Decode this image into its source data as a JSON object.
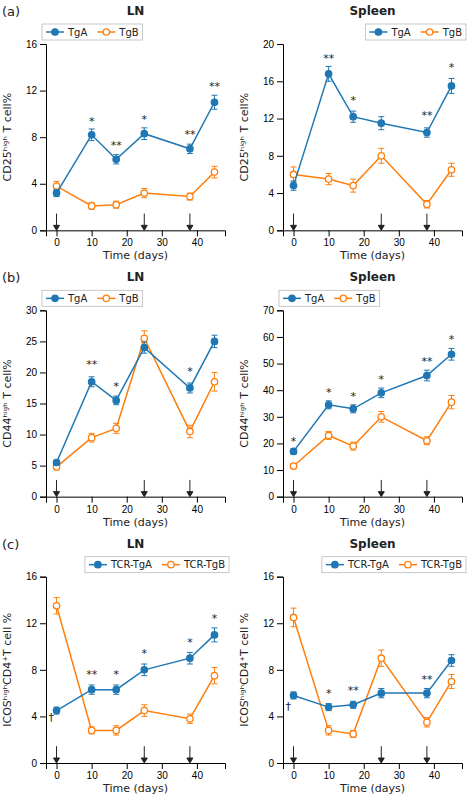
{
  "chart_data": [
    {
      "type": "line",
      "title": "LN",
      "x_label": "Time (days)",
      "y_label": "CD25ʰⁱᵍʰ T cell%",
      "x": [
        0,
        10,
        17,
        25,
        38,
        45
      ],
      "xlim": [
        -3,
        48
      ],
      "xticks": [
        0,
        10,
        20,
        30,
        40
      ],
      "ylim": [
        0,
        16
      ],
      "yticks": [
        0,
        4,
        8,
        12,
        16
      ],
      "series": [
        {
          "name": "TgA",
          "marker": "circle",
          "values": [
            3.2,
            8.2,
            6.1,
            8.3,
            7.0,
            11.0
          ],
          "errors": [
            0.3,
            0.5,
            0.4,
            0.5,
            0.4,
            0.6
          ]
        },
        {
          "name": "TgB",
          "marker": "circle-open",
          "values": [
            3.8,
            2.1,
            2.2,
            3.2,
            2.9,
            5.0
          ],
          "errors": [
            0.4,
            0.3,
            0.3,
            0.4,
            0.3,
            0.5
          ]
        }
      ],
      "arrows_x": [
        0,
        25,
        38
      ],
      "annotations": [
        {
          "text": "(a)"
        },
        {
          "text": "*",
          "x": 10,
          "y": 9.0
        },
        {
          "text": "**",
          "x": 17,
          "y": 6.9
        },
        {
          "text": "*",
          "x": 25,
          "y": 9.1
        },
        {
          "text": "**",
          "x": 38,
          "y": 7.8
        },
        {
          "text": "**",
          "x": 45,
          "y": 12.0
        }
      ],
      "legend": "upper left",
      "grid": false
    },
    {
      "type": "line",
      "title": "Spleen",
      "x_label": "Time (days)",
      "y_label": "CD25ʰⁱᵍʰ T cell%",
      "x": [
        0,
        10,
        17,
        25,
        38,
        45
      ],
      "xlim": [
        -3,
        48
      ],
      "xticks": [
        0,
        10,
        20,
        30,
        40
      ],
      "ylim": [
        0,
        20
      ],
      "yticks": [
        0,
        4,
        8,
        12,
        16,
        20
      ],
      "series": [
        {
          "name": "TgA",
          "marker": "circle",
          "values": [
            4.8,
            16.8,
            12.2,
            11.5,
            10.5,
            15.5
          ],
          "errors": [
            0.5,
            0.8,
            0.6,
            0.7,
            0.5,
            0.8
          ]
        },
        {
          "name": "TgB",
          "marker": "circle-open",
          "values": [
            6.0,
            5.5,
            4.8,
            8.0,
            2.8,
            6.5
          ],
          "errors": [
            0.8,
            0.6,
            0.7,
            0.8,
            0.4,
            0.7
          ]
        }
      ],
      "arrows_x": [
        0,
        25,
        38
      ],
      "annotations": [
        {
          "text": "**",
          "x": 10,
          "y": 18.0
        },
        {
          "text": "*",
          "x": 17,
          "y": 13.5
        },
        {
          "text": "**",
          "x": 38,
          "y": 11.8
        },
        {
          "text": "*",
          "x": 45,
          "y": 17.0
        }
      ],
      "legend": "upper right",
      "grid": false
    },
    {
      "type": "line",
      "title": "LN",
      "x_label": "Time (days)",
      "y_label": "CD44ʰⁱᵍʰ T cell%",
      "x": [
        0,
        10,
        17,
        25,
        38,
        45
      ],
      "xlim": [
        -3,
        48
      ],
      "xticks": [
        0,
        10,
        20,
        30,
        40
      ],
      "ylim": [
        0,
        30
      ],
      "yticks": [
        0,
        5,
        10,
        15,
        20,
        25,
        30
      ],
      "series": [
        {
          "name": "TgA",
          "marker": "circle",
          "values": [
            5.5,
            18.5,
            15.5,
            24.0,
            17.5,
            25.0
          ],
          "errors": [
            0.4,
            0.8,
            0.7,
            0.9,
            0.8,
            1.0
          ]
        },
        {
          "name": "TgB",
          "marker": "circle-open",
          "values": [
            4.8,
            9.5,
            11.0,
            25.5,
            10.5,
            18.5
          ],
          "errors": [
            0.5,
            0.7,
            0.8,
            1.2,
            1.0,
            1.5
          ]
        }
      ],
      "arrows_x": [
        0,
        25,
        38
      ],
      "annotations": [
        {
          "text": "(b)"
        },
        {
          "text": "**",
          "x": 10,
          "y": 20.5
        },
        {
          "text": "*",
          "x": 17,
          "y": 17.0
        },
        {
          "text": "*",
          "x": 38,
          "y": 19.5
        }
      ],
      "legend": "upper left",
      "grid": false
    },
    {
      "type": "line",
      "title": "Spleen",
      "x_label": "Time (days)",
      "y_label": "CD44ʰⁱᵍʰ T cell%",
      "x": [
        0,
        10,
        17,
        25,
        38,
        45
      ],
      "xlim": [
        -3,
        48
      ],
      "xticks": [
        0,
        10,
        20,
        30,
        40
      ],
      "ylim": [
        0,
        70
      ],
      "yticks": [
        0,
        10,
        20,
        30,
        40,
        50,
        60,
        70
      ],
      "series": [
        {
          "name": "TgA",
          "marker": "circle",
          "values": [
            17.0,
            34.5,
            33.0,
            39.0,
            45.5,
            53.5
          ],
          "errors": [
            1.0,
            1.5,
            1.5,
            1.8,
            2.0,
            2.2
          ]
        },
        {
          "name": "TgB",
          "marker": "circle-open",
          "values": [
            11.5,
            23.0,
            19.0,
            30.0,
            21.0,
            35.5
          ],
          "errors": [
            1.0,
            1.5,
            1.5,
            2.0,
            1.5,
            2.5
          ]
        }
      ],
      "arrows_x": [
        0,
        25,
        38
      ],
      "annotations": [
        {
          "text": "*",
          "x": 0,
          "y": 19.0
        },
        {
          "text": "*",
          "x": 10,
          "y": 37.5
        },
        {
          "text": "*",
          "x": 17,
          "y": 36.0
        },
        {
          "text": "*",
          "x": 25,
          "y": 42.5
        },
        {
          "text": "**",
          "x": 38,
          "y": 49.0
        },
        {
          "text": "*",
          "x": 45,
          "y": 57.5
        }
      ],
      "legend": "upper left",
      "grid": false
    },
    {
      "type": "line",
      "title": "LN",
      "x_label": "Time (days)",
      "y_label": "ICOSʰⁱᵍʰCD4⁺T cell %",
      "x": [
        0,
        10,
        17,
        25,
        38,
        45
      ],
      "xlim": [
        -3,
        48
      ],
      "xticks": [
        0,
        10,
        20,
        30,
        40
      ],
      "ylim": [
        0,
        16
      ],
      "yticks": [
        0,
        4,
        8,
        12,
        16
      ],
      "series": [
        {
          "name": "TCR-TgA",
          "marker": "circle",
          "values": [
            4.5,
            6.3,
            6.3,
            8.0,
            9.0,
            11.0
          ],
          "errors": [
            0.3,
            0.4,
            0.4,
            0.5,
            0.5,
            0.6
          ]
        },
        {
          "name": "TCR-TgB",
          "marker": "circle-open",
          "values": [
            13.5,
            2.8,
            2.8,
            4.5,
            3.8,
            7.5
          ],
          "errors": [
            0.7,
            0.3,
            0.4,
            0.5,
            0.4,
            0.7
          ]
        }
      ],
      "arrows_x": [
        0,
        25,
        38
      ],
      "annotations": [
        {
          "text": "(c)"
        },
        {
          "text": "**",
          "x": 10,
          "y": 7.2
        },
        {
          "text": "*",
          "x": 17,
          "y": 7.2
        },
        {
          "text": "*",
          "x": 25,
          "y": 9.0
        },
        {
          "text": "*",
          "x": 38,
          "y": 10.0
        },
        {
          "text": "*",
          "x": 45,
          "y": 12.0
        },
        {
          "text": "†",
          "x": -1.5,
          "y": 3.5
        }
      ],
      "legend": "upper right",
      "grid": false
    },
    {
      "type": "line",
      "title": "Spleen",
      "x_label": "Time (days)",
      "y_label": "ICOSʰⁱᵍʰCD4⁺T cell %",
      "x": [
        0,
        10,
        17,
        25,
        38,
        45
      ],
      "xlim": [
        -3,
        48
      ],
      "xticks": [
        0,
        10,
        20,
        30,
        40
      ],
      "ylim": [
        0,
        16
      ],
      "yticks": [
        0,
        4,
        8,
        12,
        16
      ],
      "series": [
        {
          "name": "TCR-TgA",
          "marker": "circle",
          "values": [
            5.8,
            4.8,
            5.0,
            6.0,
            6.0,
            8.8
          ],
          "errors": [
            0.3,
            0.3,
            0.3,
            0.4,
            0.4,
            0.5
          ]
        },
        {
          "name": "TCR-TgB",
          "marker": "circle-open",
          "values": [
            12.5,
            2.8,
            2.5,
            9.0,
            3.5,
            7.0
          ],
          "errors": [
            0.8,
            0.4,
            0.3,
            0.7,
            0.4,
            0.6
          ]
        }
      ],
      "arrows_x": [
        0,
        25,
        38
      ],
      "annotations": [
        {
          "text": "*",
          "x": 10,
          "y": 5.6
        },
        {
          "text": "**",
          "x": 17,
          "y": 5.8
        },
        {
          "text": "**",
          "x": 38,
          "y": 6.8
        },
        {
          "text": "†",
          "x": -1.5,
          "y": 4.5
        }
      ],
      "legend": "upper right",
      "grid": false
    }
  ]
}
